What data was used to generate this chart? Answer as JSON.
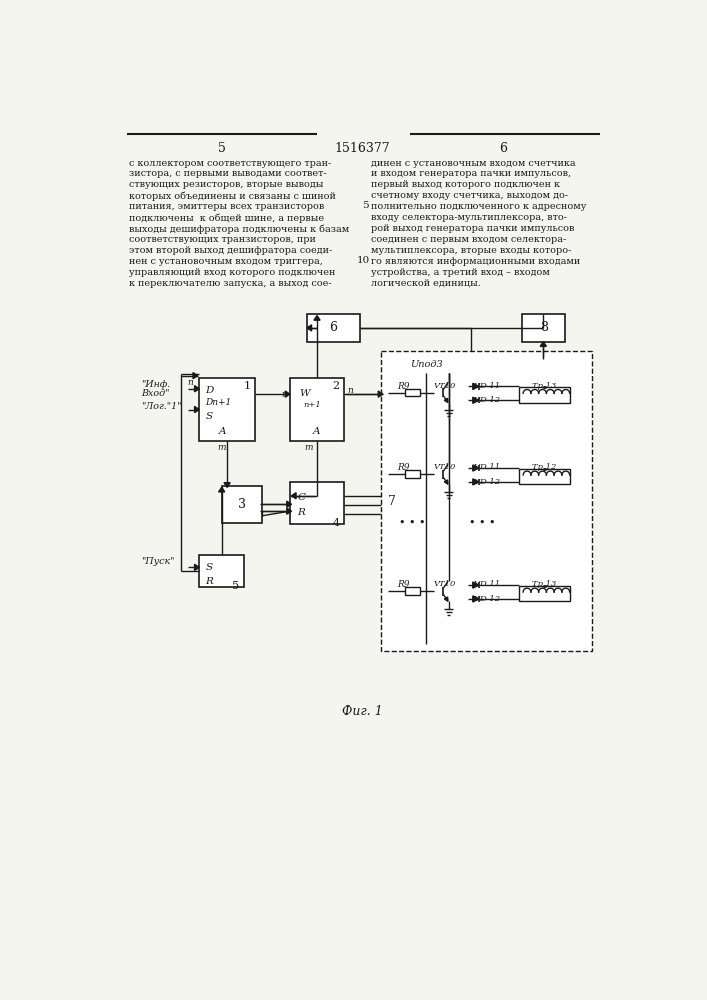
{
  "title": "1516377",
  "fig_caption": "Фиг. 1",
  "left_lines": [
    "с коллектором соответствующего тран-",
    "зистора, с первыми выводами соответ-",
    "ствующих резисторов, вторые выводы",
    "которых объединены и связаны с шиной",
    "питания, эмиттеры всех транзисторов",
    "подключены  к общей шине, а первые",
    "выходы дешифратора подключены к базам",
    "соответствующих транзисторов, при",
    "этом второй выход дешифратора соеди-",
    "нен с установочным входом триггера,",
    "управляющий вход которого подключен",
    "к переключателю запуска, а выход сое-"
  ],
  "right_lines": [
    "динен с установочным входом счетчика",
    "и входом генератора пачки импульсов,",
    "первый выход которого подключен к",
    "счетному входу счетчика, выходом до-",
    "полнительно подключенного к адресному",
    "входу селектора-мультиплексора, вто-",
    "рой выход генератора пачки импульсов",
    "соединен с первым входом селектора-",
    "мультиплексора, вторые входы которо-",
    "го являются информационными входами",
    "устройства, а третий вход – входом",
    "логической единицы."
  ],
  "background_color": "#f5f5f0",
  "line_color": "#1a1a1a",
  "text_color": "#1a1a1a"
}
